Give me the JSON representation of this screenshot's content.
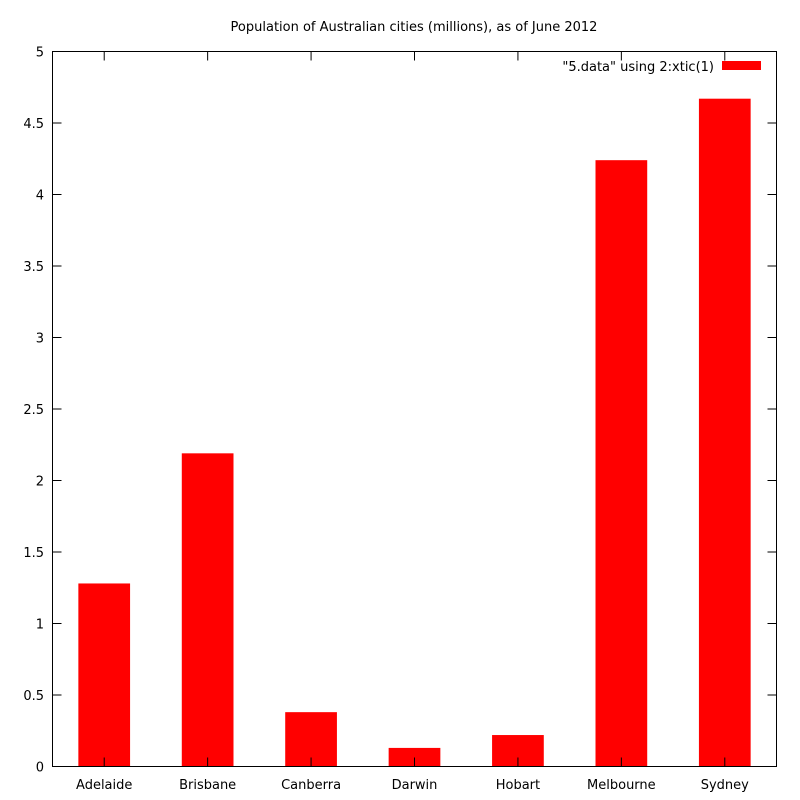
{
  "chart_data": {
    "type": "bar",
    "title": "Population of Australian cities (millions), as of June 2012",
    "xlabel": "",
    "ylabel": "",
    "categories": [
      "Adelaide",
      "Brisbane",
      "Canberra",
      "Darwin",
      "Hobart",
      "Melbourne",
      "Sydney"
    ],
    "series": [
      {
        "name": "\"5.data\" using 2:xtic(1)",
        "values": [
          1.28,
          2.19,
          0.38,
          0.13,
          0.22,
          4.24,
          4.67
        ],
        "color": "#ff0000"
      }
    ],
    "ylim": [
      0,
      5
    ],
    "yticks": [
      "0",
      "0.5",
      "1",
      "1.5",
      "2",
      "2.5",
      "3",
      "3.5",
      "4",
      "4.5",
      "5"
    ],
    "grid": false,
    "legend_position": "top-right"
  }
}
